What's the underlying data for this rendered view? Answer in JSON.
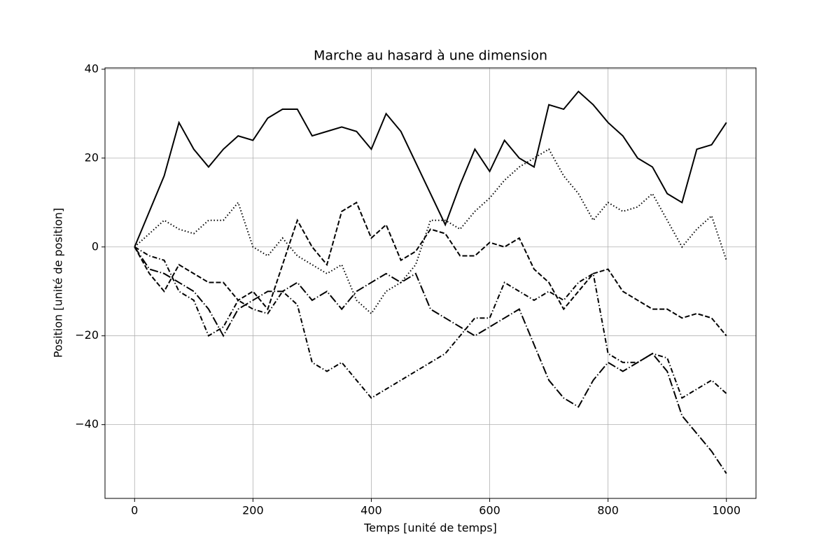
{
  "chart_data": {
    "type": "line",
    "title": "Marche au hasard à une dimension",
    "xlabel": "Temps [unité de temps]",
    "ylabel": "Position [unité de position]",
    "x": [
      0,
      25,
      50,
      75,
      100,
      125,
      150,
      175,
      200,
      225,
      250,
      275,
      300,
      325,
      350,
      375,
      400,
      425,
      450,
      475,
      500,
      525,
      550,
      575,
      600,
      625,
      650,
      675,
      700,
      725,
      750,
      775,
      800,
      825,
      850,
      875,
      900,
      925,
      950,
      975,
      1000
    ],
    "series": [
      {
        "color": "#000000",
        "linestyle": "solid",
        "values": [
          0,
          8,
          16,
          28,
          22,
          18,
          22,
          25,
          24,
          29,
          31,
          31,
          25,
          26,
          27,
          26,
          22,
          30,
          26,
          19,
          12,
          5,
          14,
          22,
          17,
          24,
          20,
          18,
          32,
          31,
          35,
          32,
          28,
          25,
          20,
          18,
          12,
          10,
          22,
          23,
          28
        ]
      },
      {
        "color": "#000000",
        "linestyle": "dotted",
        "values": [
          0,
          3,
          6,
          4,
          3,
          6,
          6,
          10,
          0,
          -2,
          2,
          -2,
          -4,
          -6,
          -4,
          -12,
          -15,
          -10,
          -8,
          -4,
          6,
          6,
          4,
          8,
          11,
          15,
          18,
          20,
          22,
          16,
          12,
          6,
          10,
          8,
          9,
          12,
          6,
          0,
          4,
          7,
          -3
        ]
      },
      {
        "color": "#000000",
        "linestyle": "dashed",
        "values": [
          0,
          -6,
          -10,
          -4,
          -6,
          -8,
          -8,
          -12,
          -10,
          -14,
          -4,
          6,
          0,
          -4,
          8,
          10,
          2,
          5,
          -3,
          -1,
          4,
          3,
          -2,
          -2,
          1,
          0,
          2,
          -5,
          -8,
          -14,
          -10,
          -6,
          -5,
          -10,
          -12,
          -14,
          -14,
          -16,
          -15,
          -16,
          -20
        ]
      },
      {
        "color": "#000000",
        "linestyle": "dashdot",
        "values": [
          0,
          -2,
          -3,
          -10,
          -12,
          -20,
          -18,
          -12,
          -14,
          -15,
          -10,
          -13,
          -26,
          -28,
          -26,
          -30,
          -34,
          -32,
          -30,
          -28,
          -26,
          -24,
          -20,
          -16,
          -16,
          -8,
          -10,
          -12,
          -10,
          -12,
          -8,
          -6,
          -24,
          -26,
          -26,
          -24,
          -25,
          -34,
          -32,
          -30,
          -33
        ]
      },
      {
        "color": "#000000",
        "linestyle": "longdashdot",
        "values": [
          0,
          -5,
          -6,
          -8,
          -10,
          -14,
          -20,
          -14,
          -12,
          -10,
          -10,
          -8,
          -12,
          -10,
          -14,
          -10,
          -8,
          -6,
          -8,
          -6,
          -14,
          -16,
          -18,
          -20,
          -18,
          -16,
          -14,
          -22,
          -30,
          -34,
          -36,
          -30,
          -26,
          -28,
          -26,
          -24,
          -28,
          -38,
          -42,
          -46,
          -51
        ]
      }
    ],
    "xlim": [
      -50,
      1050
    ],
    "ylim": [
      -56.6,
      40.3
    ],
    "xticks": [
      0,
      200,
      400,
      600,
      800,
      1000
    ],
    "yticks": [
      {
        "value": -40,
        "label": "−40"
      },
      {
        "value": -20,
        "label": "−20"
      },
      0,
      20,
      40
    ],
    "grid": true
  }
}
